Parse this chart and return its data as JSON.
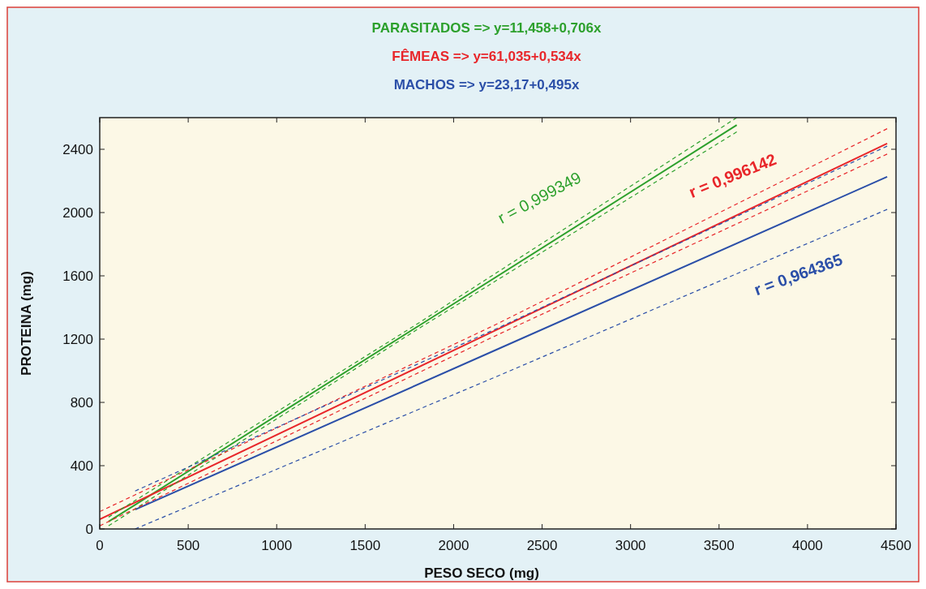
{
  "chart_data": {
    "type": "line",
    "xlabel": "PESO SECO (mg)",
    "ylabel": "PROTEINA (mg)",
    "xlim": [
      0,
      4500
    ],
    "ylim": [
      0,
      2600
    ],
    "xticks": [
      0,
      500,
      1000,
      1500,
      2000,
      2500,
      3000,
      3500,
      4000,
      4500
    ],
    "yticks": [
      0,
      400,
      800,
      1200,
      1600,
      2000,
      2400
    ],
    "grid": false,
    "marker": "none",
    "line_style": "solid",
    "series": [
      {
        "color": "#2ca02c",
        "x": [
          50,
          1800,
          3600
        ],
        "values": [
          47,
          1282,
          2553
        ]
      },
      {
        "color": "#e8262a",
        "x": [
          0,
          2225,
          4450
        ],
        "values": [
          61,
          1249,
          2437
        ]
      },
      {
        "color": "#2b4fa8",
        "x": [
          200,
          2250,
          4450
        ],
        "values": [
          122,
          1137,
          2226
        ]
      },
      {
        "color": "#2ca02c",
        "line_style": "dashed",
        "x": [
          50,
          1800,
          3600
        ],
        "values": [
          20,
          1265,
          2510
        ]
      },
      {
        "color": "#2ca02c",
        "line_style": "dashed",
        "x": [
          50,
          1800,
          3600
        ],
        "values": [
          75,
          1300,
          2600
        ]
      },
      {
        "color": "#e8262a",
        "line_style": "dashed",
        "x": [
          0,
          2225,
          4450
        ],
        "values": [
          20,
          1215,
          2370
        ]
      },
      {
        "color": "#e8262a",
        "line_style": "dashed",
        "x": [
          0,
          2225,
          4450
        ],
        "values": [
          110,
          1285,
          2530
        ]
      },
      {
        "color": "#2b4fa8",
        "line_style": "dashed",
        "x": [
          200,
          2250,
          4450
        ],
        "values": [
          0,
          967,
          2020
        ]
      },
      {
        "color": "#2b4fa8",
        "line_style": "dashed",
        "x": [
          200,
          2250,
          4450
        ],
        "values": [
          240,
          1270,
          2420
        ]
      }
    ],
    "annotations": [
      "PARASITADOS => y=11,458+0,706x",
      "FÊMEAS => y=61,035+0,534x",
      "MACHOS => y=23,17+0,495x",
      "r = 0,999349",
      "r = 0,996142",
      "r = 0,964365"
    ]
  }
}
